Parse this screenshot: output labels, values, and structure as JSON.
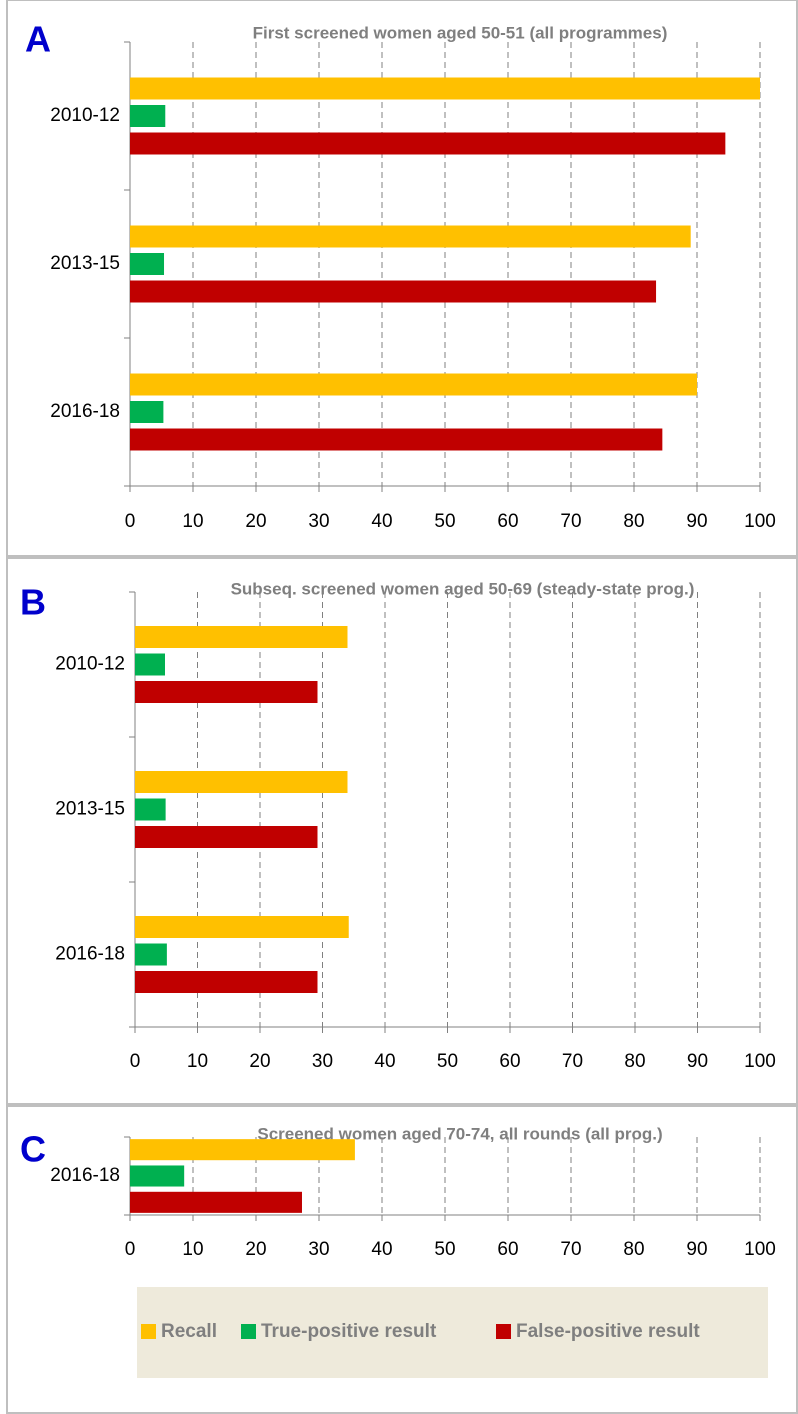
{
  "chart_data": [
    {
      "type": "bar",
      "orientation": "horizontal",
      "panel": "A",
      "title": "First screened women aged 50-51 (all programmes)",
      "categories": [
        "2010-12",
        "2013-15",
        "2016-18"
      ],
      "series": [
        {
          "color": "#ffc000",
          "values": [
            100,
            89,
            90
          ]
        },
        {
          "color": "#00b050",
          "values": [
            5.6,
            5.4,
            5.3
          ]
        },
        {
          "color": "#c00000",
          "values": [
            94.5,
            83.5,
            84.5
          ]
        }
      ],
      "xlim": [
        0,
        100
      ],
      "xticks": [
        0,
        10,
        20,
        30,
        40,
        50,
        60,
        70,
        80,
        90,
        100
      ],
      "grid": true
    },
    {
      "type": "bar",
      "orientation": "horizontal",
      "panel": "B",
      "title": "Subseq. screened women aged 50-69 (steady-state prog.)",
      "categories": [
        "2010-12",
        "2013-15",
        "2016-18"
      ],
      "series": [
        {
          "color": "#ffc000",
          "values": [
            34,
            34,
            34.2
          ]
        },
        {
          "color": "#00b050",
          "values": [
            4.8,
            4.9,
            5.1
          ]
        },
        {
          "color": "#c00000",
          "values": [
            29.2,
            29.2,
            29.2
          ]
        }
      ],
      "xlim": [
        0,
        100
      ],
      "xticks": [
        0,
        10,
        20,
        30,
        40,
        50,
        60,
        70,
        80,
        90,
        100
      ],
      "grid": true
    },
    {
      "type": "bar",
      "orientation": "horizontal",
      "panel": "C",
      "title": "Screened women aged 70-74, all rounds (all prog.)",
      "categories": [
        "2016-18"
      ],
      "series": [
        {
          "name": "Recall",
          "color": "#ffc000",
          "values": [
            35.7
          ]
        },
        {
          "name": "True-positive result",
          "color": "#00b050",
          "values": [
            8.6
          ]
        },
        {
          "name": "False-positive result",
          "color": "#c00000",
          "values": [
            27.3
          ]
        }
      ],
      "xlim": [
        0,
        100
      ],
      "xticks": [
        0,
        10,
        20,
        30,
        40,
        50,
        60,
        70,
        80,
        90,
        100
      ],
      "grid": true
    }
  ]
}
